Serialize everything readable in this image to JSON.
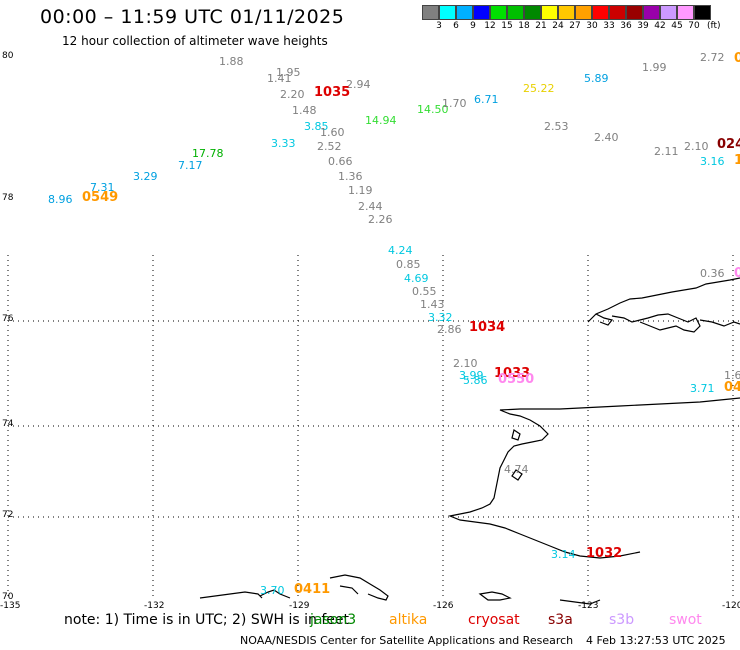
{
  "header": {
    "title": "00:00 – 11:59 UTC 01/11/2025",
    "subtitle": "12 hour collection of altimeter wave heights"
  },
  "colorbar": {
    "unit": "(ft)",
    "colors": [
      "#808080",
      "#00ffff",
      "#00b0ff",
      "#0000ff",
      "#00e000",
      "#00c000",
      "#008800",
      "#ffff00",
      "#ffc800",
      "#ffa000",
      "#ff0000",
      "#cc0000",
      "#990000",
      "#9900aa",
      "#cc99ff",
      "#ff99ff",
      "#000000"
    ],
    "labels": [
      "3",
      "6",
      "9",
      "12",
      "15",
      "18",
      "21",
      "24",
      "27",
      "30",
      "33",
      "36",
      "39",
      "42",
      "45",
      "70"
    ]
  },
  "axes": {
    "lat_labels": [
      "80",
      "78",
      "76",
      "74",
      "72",
      "70"
    ],
    "lon_labels": [
      "-135",
      "-132",
      "-129",
      "-126",
      "-123",
      "-120"
    ]
  },
  "observations": [
    {
      "text": "1.88",
      "color": "#808080"
    },
    {
      "text": "1.95",
      "color": "#808080"
    },
    {
      "text": "1.41",
      "color": "#808080"
    },
    {
      "text": "2.94",
      "color": "#808080"
    },
    {
      "text": "2.20",
      "color": "#808080"
    },
    {
      "text": "1.48",
      "color": "#808080"
    },
    {
      "text": "3.85",
      "color": "#00c8e0"
    },
    {
      "text": "1.60",
      "color": "#808080"
    },
    {
      "text": "3.33",
      "color": "#00c8e0"
    },
    {
      "text": "2.52",
      "color": "#808080"
    },
    {
      "text": "0.66",
      "color": "#808080"
    },
    {
      "text": "1.36",
      "color": "#808080"
    },
    {
      "text": "1.19",
      "color": "#808080"
    },
    {
      "text": "2.44",
      "color": "#808080"
    },
    {
      "text": "2.26",
      "color": "#808080"
    },
    {
      "text": "17.78",
      "color": "#00b000"
    },
    {
      "text": "7.17",
      "color": "#00a0e0"
    },
    {
      "text": "3.29",
      "color": "#00a0e0"
    },
    {
      "text": "7.31",
      "color": "#00a0e0"
    },
    {
      "text": "8.96",
      "color": "#00a0e0"
    },
    {
      "text": "14.94",
      "color": "#33dd33"
    },
    {
      "text": "14.50",
      "color": "#33dd33"
    },
    {
      "text": "1.70",
      "color": "#808080"
    },
    {
      "text": "6.71",
      "color": "#00a0e0"
    },
    {
      "text": "25.22",
      "color": "#e8d000"
    },
    {
      "text": "5.89",
      "color": "#00a0e0"
    },
    {
      "text": "1.99",
      "color": "#808080"
    },
    {
      "text": "2.72",
      "color": "#808080"
    },
    {
      "text": "2.53",
      "color": "#808080"
    },
    {
      "text": "2.40",
      "color": "#808080"
    },
    {
      "text": "2.11",
      "color": "#808080"
    },
    {
      "text": "2.10",
      "color": "#808080"
    },
    {
      "text": "3.16",
      "color": "#00c8e0"
    },
    {
      "text": "4.24",
      "color": "#00c8e0"
    },
    {
      "text": "0.85",
      "color": "#808080"
    },
    {
      "text": "4.69",
      "color": "#00c8e0"
    },
    {
      "text": "0.55",
      "color": "#808080"
    },
    {
      "text": "1.43",
      "color": "#808080"
    },
    {
      "text": "3.32",
      "color": "#00c8e0"
    },
    {
      "text": "2.86",
      "color": "#808080"
    },
    {
      "text": "2.10",
      "color": "#808080"
    },
    {
      "text": "3.99",
      "color": "#00c8e0"
    },
    {
      "text": "5.86",
      "color": "#00c8e0"
    },
    {
      "text": "0.36",
      "color": "#808080"
    },
    {
      "text": "1.6",
      "color": "#808080"
    },
    {
      "text": "3.71",
      "color": "#00c8e0"
    },
    {
      "text": "4.74",
      "color": "#808080"
    },
    {
      "text": "3.14",
      "color": "#00c8e0"
    },
    {
      "text": "3.70",
      "color": "#00c8e0"
    }
  ],
  "sat_times": [
    {
      "text": "1035",
      "color": "#dd0000"
    },
    {
      "text": "0549",
      "color": "#ff9900"
    },
    {
      "text": "1034",
      "color": "#dd0000"
    },
    {
      "text": "1033",
      "color": "#dd0000"
    },
    {
      "text": "0550",
      "color": "#ff88ee"
    },
    {
      "text": "1032",
      "color": "#dd0000"
    },
    {
      "text": "0411",
      "color": "#ff9900"
    },
    {
      "text": "024",
      "color": "#880000"
    },
    {
      "text": "04",
      "color": "#ff9900"
    },
    {
      "text": "0",
      "color": "#ff9900"
    },
    {
      "text": "1",
      "color": "#ff9900"
    },
    {
      "text": "0",
      "color": "#ff88ee"
    }
  ],
  "footer": {
    "note": "note:  1) Time is in UTC;  2) SWH is in feet",
    "legend": [
      {
        "name": "jason3",
        "color": "#008800"
      },
      {
        "name": "altika",
        "color": "#ff9900"
      },
      {
        "name": "cryosat",
        "color": "#dd0000"
      },
      {
        "name": "s3a",
        "color": "#880000"
      },
      {
        "name": "s3b",
        "color": "#cc99ff"
      },
      {
        "name": "swot",
        "color": "#ff88ee"
      }
    ],
    "credit": "NOAA/NESDIS Center for Satellite Applications and Research",
    "timestamp": "4 Feb 13:27:53 UTC 2025"
  }
}
